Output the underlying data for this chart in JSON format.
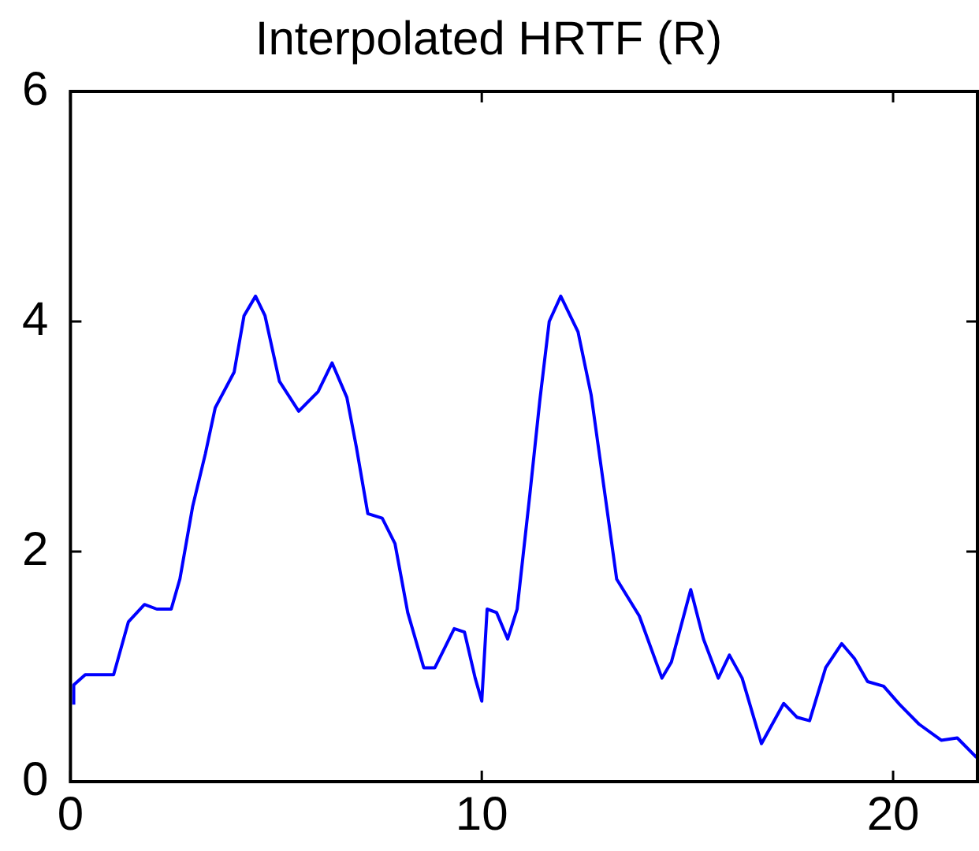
{
  "chart_data": {
    "type": "line",
    "title": "Interpolated HRTF (R)",
    "x": [
      0.08,
      0.08,
      0.36,
      1.05,
      1.41,
      1.8,
      2.1,
      2.45,
      2.66,
      2.97,
      3.28,
      3.52,
      3.98,
      4.22,
      4.5,
      4.73,
      5.08,
      5.55,
      6.02,
      6.36,
      6.72,
      6.95,
      7.23,
      7.58,
      7.89,
      8.2,
      8.59,
      8.86,
      9.33,
      9.58,
      9.84,
      10.0,
      10.13,
      10.36,
      10.63,
      10.86,
      11.17,
      11.41,
      11.64,
      11.92,
      12.34,
      12.66,
      12.97,
      13.28,
      13.83,
      14.38,
      14.61,
      15.08,
      15.39,
      15.75,
      16.02,
      16.33,
      16.8,
      17.34,
      17.66,
      17.97,
      18.36,
      18.75,
      19.06,
      19.38,
      19.77,
      20.16,
      20.63,
      21.17,
      21.56,
      22.03
    ],
    "series": [
      {
        "color": "#0000ff",
        "values": [
          0.67,
          0.84,
          0.93,
          0.93,
          1.39,
          1.54,
          1.5,
          1.5,
          1.76,
          2.39,
          2.85,
          3.25,
          3.56,
          4.05,
          4.22,
          4.05,
          3.48,
          3.22,
          3.39,
          3.64,
          3.34,
          2.91,
          2.33,
          2.29,
          2.07,
          1.47,
          0.99,
          0.99,
          1.33,
          1.3,
          0.9,
          0.7,
          1.5,
          1.47,
          1.24,
          1.5,
          2.5,
          3.31,
          4.0,
          4.22,
          3.91,
          3.36,
          2.56,
          1.76,
          1.44,
          0.9,
          1.04,
          1.67,
          1.24,
          0.9,
          1.1,
          0.9,
          0.33,
          0.68,
          0.56,
          0.53,
          0.99,
          1.2,
          1.07,
          0.87,
          0.83,
          0.67,
          0.5,
          0.36,
          0.38,
          0.21
        ]
      }
    ],
    "xlim": [
      0,
      22.05
    ],
    "xticks": [
      0,
      10,
      20
    ],
    "ylim": [
      0,
      6
    ],
    "yticks": [
      0,
      2,
      4,
      6
    ],
    "grid": false,
    "legend": false,
    "marker": "none",
    "line_style": "solid"
  }
}
